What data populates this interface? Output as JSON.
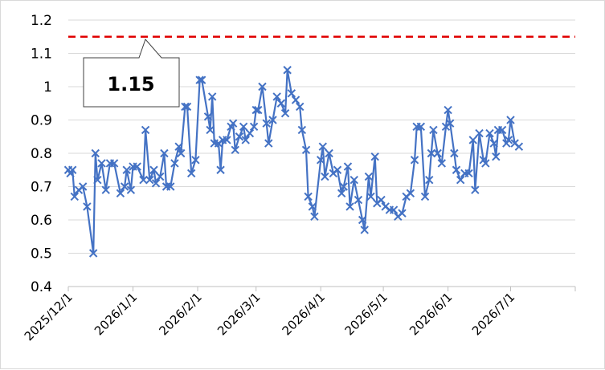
{
  "chart_data": {
    "type": "line",
    "title": "",
    "xlabel": "",
    "ylabel": "",
    "ylim": [
      0.4,
      1.2
    ],
    "y_ticks": [
      "0.4",
      "0.5",
      "0.6",
      "0.7",
      "0.8",
      "0.9",
      "1",
      "1.1",
      "1.2"
    ],
    "x_ticks": [
      {
        "date": "2025-12-01",
        "label": "2025/12/1"
      },
      {
        "date": "2026-01-01",
        "label": "2026/1/1"
      },
      {
        "date": "2026-02-01",
        "label": "2026/2/1"
      },
      {
        "date": "2026-03-01",
        "label": "2026/3/1"
      },
      {
        "date": "2026-04-01",
        "label": "2026/4/1"
      },
      {
        "date": "2026-05-01",
        "label": "2026/5/1"
      },
      {
        "date": "2026-06-01",
        "label": "2026/6/1"
      },
      {
        "date": "2026-07-01",
        "label": "2026/7/1"
      }
    ],
    "xlim": [
      "2025-12-01",
      "2026-08-01"
    ],
    "grid": "horizontal",
    "legend": "none",
    "marker": "x",
    "series": [
      {
        "color": "#4472c4",
        "points": [
          [
            "2025-12-01",
            0.75
          ],
          [
            "2025-12-02",
            0.74
          ],
          [
            "2025-12-03",
            0.75
          ],
          [
            "2025-12-04",
            0.67
          ],
          [
            "2025-12-06",
            0.69
          ],
          [
            "2025-12-08",
            0.7
          ],
          [
            "2025-12-10",
            0.64
          ],
          [
            "2025-12-13",
            0.5
          ],
          [
            "2025-12-14",
            0.8
          ],
          [
            "2025-12-15",
            0.72
          ],
          [
            "2025-12-17",
            0.77
          ],
          [
            "2025-12-19",
            0.69
          ],
          [
            "2025-12-21",
            0.77
          ],
          [
            "2025-12-23",
            0.77
          ],
          [
            "2025-12-26",
            0.68
          ],
          [
            "2025-12-28",
            0.7
          ],
          [
            "2025-12-29",
            0.75
          ],
          [
            "2025-12-31",
            0.69
          ],
          [
            "2026-01-01",
            0.76
          ],
          [
            "2026-01-03",
            0.76
          ],
          [
            "2026-01-06",
            0.72
          ],
          [
            "2026-01-07",
            0.87
          ],
          [
            "2026-01-09",
            0.72
          ],
          [
            "2026-01-11",
            0.75
          ],
          [
            "2026-01-12",
            0.71
          ],
          [
            "2026-01-14",
            0.73
          ],
          [
            "2026-01-16",
            0.8
          ],
          [
            "2026-01-17",
            0.7
          ],
          [
            "2026-01-19",
            0.7
          ],
          [
            "2026-01-21",
            0.77
          ],
          [
            "2026-01-23",
            0.82
          ],
          [
            "2026-01-24",
            0.8
          ],
          [
            "2026-01-26",
            0.94
          ],
          [
            "2026-01-27",
            0.94
          ],
          [
            "2026-01-29",
            0.74
          ],
          [
            "2026-01-31",
            0.78
          ],
          [
            "2026-02-02",
            1.02
          ],
          [
            "2026-02-03",
            1.02
          ],
          [
            "2026-02-06",
            0.91
          ],
          [
            "2026-02-07",
            0.87
          ],
          [
            "2026-02-08",
            0.97
          ],
          [
            "2026-02-09",
            0.83
          ],
          [
            "2026-02-11",
            0.83
          ],
          [
            "2026-02-12",
            0.75
          ],
          [
            "2026-02-13",
            0.84
          ],
          [
            "2026-02-15",
            0.84
          ],
          [
            "2026-02-17",
            0.88
          ],
          [
            "2026-02-18",
            0.89
          ],
          [
            "2026-02-19",
            0.81
          ],
          [
            "2026-02-21",
            0.85
          ],
          [
            "2026-02-23",
            0.88
          ],
          [
            "2026-02-24",
            0.84
          ],
          [
            "2026-02-26",
            0.86
          ],
          [
            "2026-02-28",
            0.88
          ],
          [
            "2026-03-01",
            0.93
          ],
          [
            "2026-03-02",
            0.93
          ],
          [
            "2026-03-04",
            1.0
          ],
          [
            "2026-03-06",
            0.89
          ],
          [
            "2026-03-07",
            0.83
          ],
          [
            "2026-03-09",
            0.9
          ],
          [
            "2026-03-11",
            0.97
          ],
          [
            "2026-03-13",
            0.95
          ],
          [
            "2026-03-15",
            0.92
          ],
          [
            "2026-03-16",
            1.05
          ],
          [
            "2026-03-18",
            0.98
          ],
          [
            "2026-03-20",
            0.96
          ],
          [
            "2026-03-22",
            0.94
          ],
          [
            "2026-03-23",
            0.87
          ],
          [
            "2026-03-25",
            0.81
          ],
          [
            "2026-03-26",
            0.67
          ],
          [
            "2026-03-28",
            0.64
          ],
          [
            "2026-03-29",
            0.61
          ],
          [
            "2026-04-01",
            0.78
          ],
          [
            "2026-04-02",
            0.82
          ],
          [
            "2026-04-03",
            0.73
          ],
          [
            "2026-04-05",
            0.8
          ],
          [
            "2026-04-07",
            0.74
          ],
          [
            "2026-04-09",
            0.75
          ],
          [
            "2026-04-11",
            0.68
          ],
          [
            "2026-04-12",
            0.7
          ],
          [
            "2026-04-14",
            0.76
          ],
          [
            "2026-04-15",
            0.64
          ],
          [
            "2026-04-17",
            0.72
          ],
          [
            "2026-04-19",
            0.66
          ],
          [
            "2026-04-21",
            0.6
          ],
          [
            "2026-04-22",
            0.57
          ],
          [
            "2026-04-24",
            0.73
          ],
          [
            "2026-04-25",
            0.67
          ],
          [
            "2026-04-27",
            0.79
          ],
          [
            "2026-04-28",
            0.65
          ],
          [
            "2026-04-30",
            0.66
          ],
          [
            "2026-05-02",
            0.64
          ],
          [
            "2026-05-04",
            0.63
          ],
          [
            "2026-05-06",
            0.63
          ],
          [
            "2026-05-08",
            0.61
          ],
          [
            "2026-05-10",
            0.62
          ],
          [
            "2026-05-12",
            0.67
          ],
          [
            "2026-05-14",
            0.68
          ],
          [
            "2026-05-16",
            0.78
          ],
          [
            "2026-05-17",
            0.88
          ],
          [
            "2026-05-19",
            0.88
          ],
          [
            "2026-05-21",
            0.67
          ],
          [
            "2026-05-23",
            0.72
          ],
          [
            "2026-05-24",
            0.8
          ],
          [
            "2026-05-25",
            0.87
          ],
          [
            "2026-05-27",
            0.8
          ],
          [
            "2026-05-29",
            0.77
          ],
          [
            "2026-05-31",
            0.88
          ],
          [
            "2026-06-01",
            0.93
          ],
          [
            "2026-06-02",
            0.89
          ],
          [
            "2026-06-04",
            0.8
          ],
          [
            "2026-06-05",
            0.75
          ],
          [
            "2026-06-07",
            0.72
          ],
          [
            "2026-06-09",
            0.74
          ],
          [
            "2026-06-11",
            0.74
          ],
          [
            "2026-06-13",
            0.84
          ],
          [
            "2026-06-14",
            0.69
          ],
          [
            "2026-06-16",
            0.86
          ],
          [
            "2026-06-18",
            0.78
          ],
          [
            "2026-06-19",
            0.77
          ],
          [
            "2026-06-21",
            0.86
          ],
          [
            "2026-06-23",
            0.83
          ],
          [
            "2026-06-24",
            0.79
          ],
          [
            "2026-06-25",
            0.87
          ],
          [
            "2026-06-27",
            0.87
          ],
          [
            "2026-06-29",
            0.83
          ],
          [
            "2026-06-30",
            0.84
          ],
          [
            "2026-07-01",
            0.9
          ],
          [
            "2026-07-03",
            0.83
          ],
          [
            "2026-07-05",
            0.82
          ]
        ]
      }
    ],
    "reference_line": {
      "value": 1.15,
      "color": "#e00000",
      "style": "dashed"
    },
    "callout": {
      "text": "1.15"
    }
  }
}
